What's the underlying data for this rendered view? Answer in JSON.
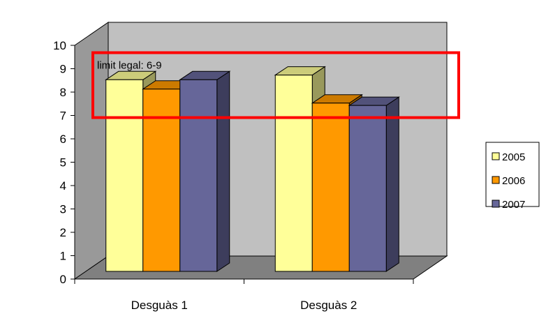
{
  "chart_data": {
    "type": "bar",
    "title": "",
    "xlabel": "",
    "ylabel": "",
    "categories": [
      "Desguàs 1",
      "Desguàs 2"
    ],
    "series": [
      {
        "name": "2005",
        "values": [
          8.2,
          8.4
        ],
        "color": "#ffff99"
      },
      {
        "name": "2006",
        "values": [
          7.8,
          7.2
        ],
        "color": "#ff9900"
      },
      {
        "name": "2007",
        "values": [
          8.2,
          7.1
        ],
        "color": "#666699"
      }
    ],
    "ylim": [
      0,
      10
    ],
    "yticks": [
      "0",
      "1",
      "2",
      "3",
      "4",
      "5",
      "6",
      "7",
      "8",
      "9",
      "10"
    ],
    "grid": false,
    "three_d": true,
    "legend_position": "right",
    "annotation": {
      "text": "limit legal: 6-9",
      "range": [
        6.7,
        9
      ],
      "box_color": "#ff0000"
    },
    "background_wall_color": "#c0c0c0",
    "side_wall_color": "#999999",
    "floor_color": "#808080"
  }
}
